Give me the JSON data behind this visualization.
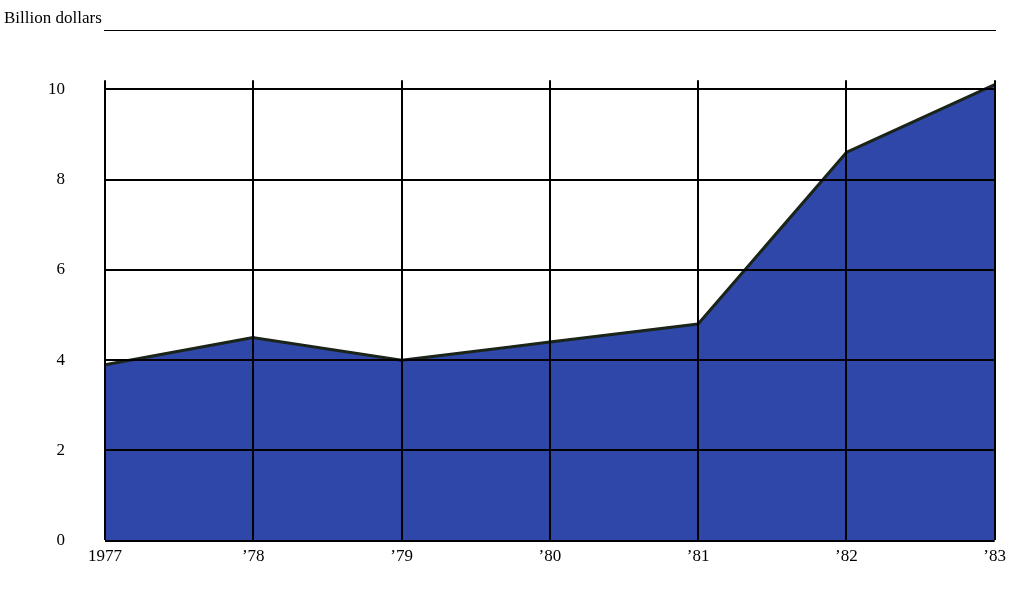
{
  "chart_data": {
    "type": "area",
    "ylabel": "Billion dollars",
    "categories": [
      "1977",
      "’78",
      "’79",
      "’80",
      "’81",
      "’82",
      "’83"
    ],
    "series": [
      {
        "color": "#2e47a8",
        "values": [
          3.9,
          4.5,
          4.0,
          4.4,
          4.8,
          8.6,
          10.1
        ]
      }
    ],
    "ylim": [
      0,
      10.2
    ],
    "yticks": [
      0,
      2,
      4,
      6,
      8,
      10
    ],
    "grid": true,
    "legend": false
  }
}
